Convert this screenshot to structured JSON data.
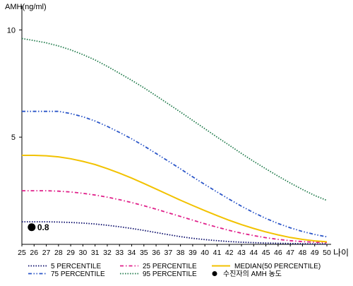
{
  "chart_data": {
    "type": "line",
    "ylabel": "AMH(ng/ml)",
    "xlabel": "나이",
    "x": [
      25,
      26,
      27,
      28,
      29,
      30,
      31,
      32,
      33,
      34,
      35,
      36,
      37,
      38,
      39,
      40,
      41,
      42,
      43,
      44,
      45,
      46,
      47,
      48,
      49,
      50
    ],
    "xlim": [
      25,
      50
    ],
    "ylim": [
      0,
      11
    ],
    "y_ticks": [
      5,
      10
    ],
    "grid": false,
    "series": [
      {
        "name": "5 PERCENTILE",
        "color": "#0b0d6b",
        "dash": "dotted",
        "values": [
          1.05,
          1.05,
          1.05,
          1.04,
          1.02,
          0.99,
          0.95,
          0.89,
          0.82,
          0.74,
          0.65,
          0.55,
          0.45,
          0.36,
          0.28,
          0.22,
          0.17,
          0.13,
          0.1,
          0.08,
          0.06,
          0.05,
          0.04,
          0.03,
          0.02,
          0.02
        ]
      },
      {
        "name": "25 PERCENTILE",
        "color": "#e0208a",
        "dash": "dashdot",
        "values": [
          2.5,
          2.5,
          2.5,
          2.48,
          2.44,
          2.38,
          2.3,
          2.2,
          2.08,
          1.95,
          1.8,
          1.64,
          1.47,
          1.3,
          1.13,
          0.96,
          0.8,
          0.65,
          0.52,
          0.41,
          0.31,
          0.23,
          0.17,
          0.13,
          0.1,
          0.08
        ]
      },
      {
        "name": "MEDIAN(50 PERCENTILE)",
        "color": "#f2c200",
        "dash": "solid",
        "values": [
          4.15,
          4.15,
          4.13,
          4.08,
          3.99,
          3.87,
          3.72,
          3.53,
          3.32,
          3.09,
          2.84,
          2.58,
          2.32,
          2.06,
          1.81,
          1.57,
          1.34,
          1.12,
          0.92,
          0.74,
          0.58,
          0.44,
          0.32,
          0.23,
          0.16,
          0.12
        ]
      },
      {
        "name": "75 PERCENTILE",
        "color": "#2a55c8",
        "dash": "dashdotdot",
        "values": [
          6.2,
          6.2,
          6.2,
          6.2,
          6.1,
          5.95,
          5.75,
          5.5,
          5.22,
          4.92,
          4.59,
          4.24,
          3.88,
          3.52,
          3.15,
          2.79,
          2.44,
          2.1,
          1.78,
          1.48,
          1.21,
          0.97,
          0.77,
          0.6,
          0.46,
          0.35
        ]
      },
      {
        "name": "95 PERCENTILE",
        "color": "#1f7a4a",
        "dash": "dotted",
        "values": [
          9.6,
          9.5,
          9.4,
          9.25,
          9.07,
          8.85,
          8.6,
          8.3,
          7.98,
          7.65,
          7.3,
          6.93,
          6.55,
          6.17,
          5.78,
          5.39,
          5.0,
          4.62,
          4.24,
          3.87,
          3.52,
          3.18,
          2.86,
          2.56,
          2.28,
          2.05
        ]
      }
    ],
    "marker": {
      "name": "수진자의 AMH 농도",
      "x": 25.8,
      "y": 0.8,
      "label": "0.8"
    },
    "legend": {
      "position": "bottom",
      "items": [
        {
          "label": "5 PERCENTILE",
          "color": "#0b0d6b",
          "dash": "dotted"
        },
        {
          "label": "25 PERCENTILE",
          "color": "#e0208a",
          "dash": "dashdot"
        },
        {
          "label": "MEDIAN(50 PERCENTILE)",
          "color": "#f2c200",
          "dash": "solid"
        },
        {
          "label": "75 PERCENTILE",
          "color": "#2a55c8",
          "dash": "dashdotdot"
        },
        {
          "label": "95 PERCENTILE",
          "color": "#1f7a4a",
          "dash": "dotted"
        },
        {
          "label": "수진자의 AMH 농도",
          "color": "#000000",
          "dash": "marker"
        }
      ]
    }
  }
}
